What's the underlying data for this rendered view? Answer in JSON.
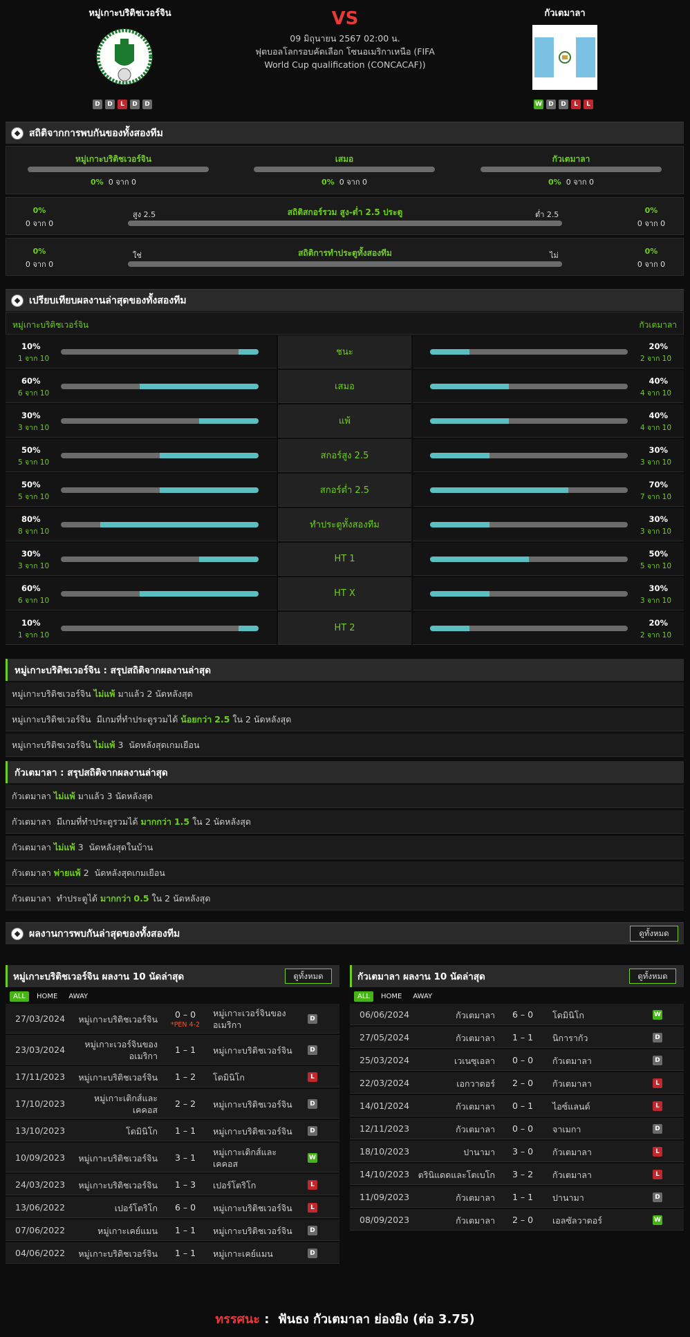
{
  "header": {
    "home_team": "หมู่เกาะบริติชเวอร์จิน",
    "away_team": "กัวเตมาลา",
    "vs": "VS",
    "match_datetime": "09 มิถุนายน 2567 02:00 น.",
    "competition_line1": "ฟุตบอลโลกรอบคัดเลือก โซนอเมริกาเหนือ (FIFA",
    "competition_line2": "World Cup qualification (CONCACAF))",
    "home_form": [
      "D",
      "D",
      "L",
      "D",
      "D"
    ],
    "away_form": [
      "W",
      "D",
      "D",
      "L",
      "L"
    ]
  },
  "h2h": {
    "title": "สถิติจากการพบกันของทั้งสองทีม",
    "home": {
      "label": "หมู่เกาะบริติชเวอร์จิน",
      "pct": "0%",
      "count": "0 จาก 0"
    },
    "draw": {
      "label": "เสมอ",
      "pct": "0%",
      "count": "0 จาก 0"
    },
    "away": {
      "label": "กัวเตมาลา",
      "pct": "0%",
      "count": "0 จาก 0"
    },
    "over_under": {
      "title": "สถิติสกอร์รวม สูง-ต่ำ 2.5 ประตู",
      "left_label": "สูง 2.5",
      "right_label": "ต่ำ 2.5",
      "left_pct": "0%",
      "left_count": "0 จาก 0",
      "right_pct": "0%",
      "right_count": "0 จาก 0"
    },
    "btts": {
      "title": "สถิติการทำประตูทั้งสองทีม",
      "left_label": "ใช่",
      "right_label": "ไม่",
      "left_pct": "0%",
      "left_count": "0 จาก 0",
      "right_pct": "0%",
      "right_count": "0 จาก 0"
    }
  },
  "compare": {
    "title": "เปรียบเทียบผลงานล่าสุดของทั้งสองทีม",
    "home_team": "หมู่เกาะบริติชเวอร์จิน",
    "away_team": "กัวเตมาลา",
    "rows": [
      {
        "label": "ชนะ",
        "home_pct": "10%",
        "home_count": "1 จาก 10",
        "home_value": 0.1,
        "away_pct": "20%",
        "away_count": "2 จาก 10",
        "away_value": 0.2
      },
      {
        "label": "เสมอ",
        "home_pct": "60%",
        "home_count": "6 จาก 10",
        "home_value": 0.6,
        "away_pct": "40%",
        "away_count": "4 จาก 10",
        "away_value": 0.4
      },
      {
        "label": "แพ้",
        "home_pct": "30%",
        "home_count": "3 จาก 10",
        "home_value": 0.3,
        "away_pct": "40%",
        "away_count": "4 จาก 10",
        "away_value": 0.4
      },
      {
        "label": "สกอร์สูง 2.5",
        "home_pct": "50%",
        "home_count": "5 จาก 10",
        "home_value": 0.5,
        "away_pct": "30%",
        "away_count": "3 จาก 10",
        "away_value": 0.3
      },
      {
        "label": "สกอร์ต่ำ 2.5",
        "home_pct": "50%",
        "home_count": "5 จาก 10",
        "home_value": 0.5,
        "away_pct": "70%",
        "away_count": "7 จาก 10",
        "away_value": 0.7
      },
      {
        "label": "ทำประตูทั้งสองทีม",
        "home_pct": "80%",
        "home_count": "8 จาก 10",
        "home_value": 0.8,
        "away_pct": "30%",
        "away_count": "3 จาก 10",
        "away_value": 0.3
      },
      {
        "label": "HT 1",
        "home_pct": "30%",
        "home_count": "3 จาก 10",
        "home_value": 0.3,
        "away_pct": "50%",
        "away_count": "5 จาก 10",
        "away_value": 0.5
      },
      {
        "label": "HT X",
        "home_pct": "60%",
        "home_count": "6 จาก 10",
        "home_value": 0.6,
        "away_pct": "30%",
        "away_count": "3 จาก 10",
        "away_value": 0.3
      },
      {
        "label": "HT 2",
        "home_pct": "10%",
        "home_count": "1 จาก 10",
        "home_value": 0.1,
        "away_pct": "20%",
        "away_count": "2 จาก 10",
        "away_value": 0.2
      }
    ]
  },
  "home_summary": {
    "title": "หมู่เกาะบริติชเวอร์จิน : สรุปสถิติจากผลงานล่าสุด",
    "rows": [
      {
        "pre": "หมู่เกาะบริติชเวอร์จิน ",
        "hl1": "ไม่แพ้",
        "mid": " มาแล้ว 2 นัดหลังสุด",
        "hl2": "",
        "post": ""
      },
      {
        "pre": "หมู่เกาะบริติชเวอร์จิน  มีเกมที่ทำประตูรวมได้ ",
        "hl1": "น้อยกว่า",
        "mid": " ",
        "hl2": "2.5",
        "post": " ใน 2 นัดหลังสุด"
      },
      {
        "pre": "หมู่เกาะบริติชเวอร์จิน ",
        "hl1": "ไม่แพ้",
        "mid": " 3  นัดหลังสุดเกมเยือน",
        "hl2": "",
        "post": ""
      }
    ]
  },
  "away_summary": {
    "title": "กัวเตมาลา : สรุปสถิติจากผลงานล่าสุด",
    "rows": [
      {
        "pre": "กัวเตมาลา ",
        "hl1": "ไม่แพ้",
        "mid": " มาแล้ว 3 นัดหลังสุด",
        "hl2": "",
        "post": ""
      },
      {
        "pre": "กัวเตมาลา  มีเกมที่ทำประตูรวมได้ ",
        "hl1": "มากกว่า",
        "mid": " ",
        "hl2": "1.5",
        "post": " ใน 2 นัดหลังสุด"
      },
      {
        "pre": "กัวเตมาลา ",
        "hl1": "ไม่แพ้",
        "mid": " 3  นัดหลังสุดในบ้าน",
        "hl2": "",
        "post": ""
      },
      {
        "pre": "กัวเตมาลา ",
        "hl1": "พ่ายแพ้",
        "mid": " 2  นัดหลังสุดเกมเยือน",
        "hl2": "",
        "post": ""
      },
      {
        "pre": "กัวเตมาลา  ทำประตูได้ ",
        "hl1": "มากกว่า",
        "mid": " ",
        "hl2": "0.5",
        "post": " ใน 2 นัดหลังสุด"
      }
    ]
  },
  "recent": {
    "title": "ผลงานการพบกันล่าสุดของทั้งสองทีม",
    "view_all": "ดูทั้งหมด",
    "filters": [
      "ALL",
      "HOME",
      "AWAY"
    ],
    "home_list": {
      "title": "หมู่เกาะบริติชเวอร์จิน ผลงาน 10 นัดล่าสุด",
      "matches": [
        {
          "date": "27/03/2024",
          "home": "หมู่เกาะบริติชเวอร์จิน",
          "score": "0 – 0",
          "pen": "*PEN 4-2",
          "away": "หมู่เกาะเวอร์จินของ\nอเมริกา",
          "result": "D"
        },
        {
          "date": "23/03/2024",
          "home": "หมู่เกาะเวอร์จินของ\nอเมริกา",
          "score": "1 – 1",
          "pen": "",
          "away": "หมู่เกาะบริติชเวอร์จิน",
          "result": "D"
        },
        {
          "date": "17/11/2023",
          "home": "หมู่เกาะบริติชเวอร์จิน",
          "score": "1 – 2",
          "pen": "",
          "away": "โดมินิโก",
          "result": "L"
        },
        {
          "date": "17/10/2023",
          "home": "หมู่เกาะเติกส์และ\nเคคอส",
          "score": "2 – 2",
          "pen": "",
          "away": "หมู่เกาะบริติชเวอร์จิน",
          "result": "D"
        },
        {
          "date": "13/10/2023",
          "home": "โดมินิโก",
          "score": "1 – 1",
          "pen": "",
          "away": "หมู่เกาะบริติชเวอร์จิน",
          "result": "D"
        },
        {
          "date": "10/09/2023",
          "home": "หมู่เกาะบริติชเวอร์จิน",
          "score": "3 – 1",
          "pen": "",
          "away": "หมู่เกาะเติกส์และ\nเคคอส",
          "result": "W"
        },
        {
          "date": "24/03/2023",
          "home": "หมู่เกาะบริติชเวอร์จิน",
          "score": "1 – 3",
          "pen": "",
          "away": "เปอร์โตริโก",
          "result": "L"
        },
        {
          "date": "13/06/2022",
          "home": "เปอร์โตริโก",
          "score": "6 – 0",
          "pen": "",
          "away": "หมู่เกาะบริติชเวอร์จิน",
          "result": "L"
        },
        {
          "date": "07/06/2022",
          "home": "หมู่เกาะเคย์แมน",
          "score": "1 – 1",
          "pen": "",
          "away": "หมู่เกาะบริติชเวอร์จิน",
          "result": "D"
        },
        {
          "date": "04/06/2022",
          "home": "หมู่เกาะบริติชเวอร์จิน",
          "score": "1 – 1",
          "pen": "",
          "away": "หมู่เกาะเคย์แมน",
          "result": "D"
        }
      ]
    },
    "away_list": {
      "title": "กัวเตมาลา ผลงาน 10 นัดล่าสุด",
      "matches": [
        {
          "date": "06/06/2024",
          "home": "กัวเตมาลา",
          "score": "6 – 0",
          "away": "โดมินิโก",
          "result": "W"
        },
        {
          "date": "27/05/2024",
          "home": "กัวเตมาลา",
          "score": "1 – 1",
          "away": "นิการากัว",
          "result": "D"
        },
        {
          "date": "25/03/2024",
          "home": "เวเนซุเอลา",
          "score": "0 – 0",
          "away": "กัวเตมาลา",
          "result": "D"
        },
        {
          "date": "22/03/2024",
          "home": "เอกวาดอร์",
          "score": "2 – 0",
          "away": "กัวเตมาลา",
          "result": "L"
        },
        {
          "date": "14/01/2024",
          "home": "กัวเตมาลา",
          "score": "0 – 1",
          "away": "ไอซ์แลนด์",
          "result": "L"
        },
        {
          "date": "12/11/2023",
          "home": "กัวเตมาลา",
          "score": "0 – 0",
          "away": "จาเมกา",
          "result": "D"
        },
        {
          "date": "18/10/2023",
          "home": "ปานามา",
          "score": "3 – 0",
          "away": "กัวเตมาลา",
          "result": "L"
        },
        {
          "date": "14/10/2023",
          "home": "ตรินิแดดและโตเบโก",
          "score": "3 – 2",
          "away": "กัวเตมาลา",
          "result": "L"
        },
        {
          "date": "11/09/2023",
          "home": "กัวเตมาลา",
          "score": "1 – 1",
          "away": "ปานามา",
          "result": "D"
        },
        {
          "date": "08/09/2023",
          "home": "กัวเตมาลา",
          "score": "2 – 0",
          "away": "เอลซัลวาดอร์",
          "result": "W"
        }
      ]
    }
  },
  "verdict": {
    "label": "ทรรศนะ",
    "sep": " :  ",
    "text": "ฟันธง กัวเตมาลา ย่องยิง (ต่อ 3.75)"
  },
  "colors": {
    "accent": "#6fcf1f",
    "bar_fill": "#5bbfc2",
    "bar_track": "#6b6b6b",
    "win": "#46b416",
    "loss": "#c0282d",
    "draw": "#6a6a6a",
    "verdict_label": "#e83939"
  }
}
